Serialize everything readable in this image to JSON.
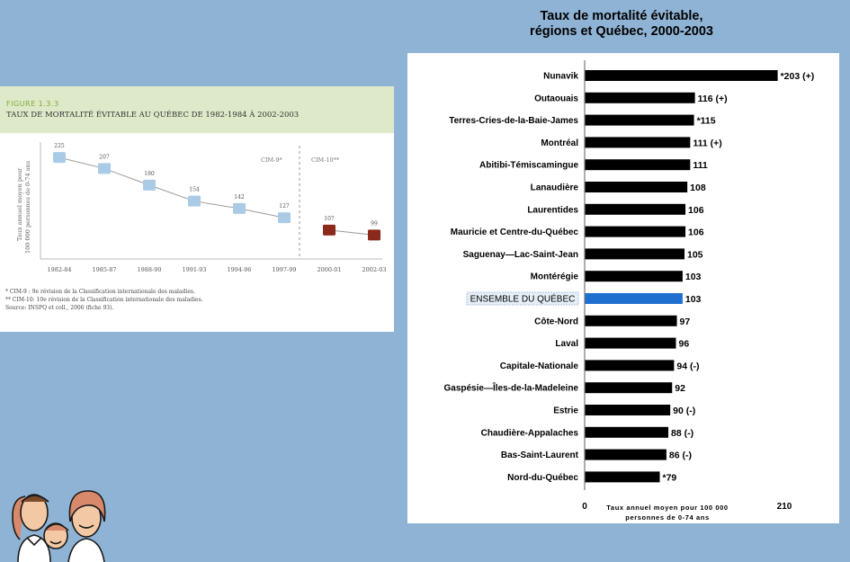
{
  "left_figure": {
    "label": "FIGURE 1.3.3",
    "title": "TAUX DE MORTALITÉ ÉVITABLE AU QUÉBEC DE 1982-1984 À 2002-2003",
    "ylabel_line1": "Taux annuel moyen pour",
    "ylabel_line2": "100 000 personnes de 0-74 ans",
    "cim9_label": "CIM-9*",
    "cim10_label": "CIM-10**",
    "notes": [
      "* CIM-9 : 9e révision de la Classification internationale des maladies.",
      "** CIM-10: 10e révision de la Classification internationale des maladies.",
      "Source: INSPQ et coll., 2006 (fiche 93)."
    ],
    "colors": {
      "cim9": "#a9cbe6",
      "cim10": "#8b2a1c",
      "line": "#9a9a9a"
    }
  },
  "chart_data": [
    {
      "type": "line",
      "title": "TAUX DE MORTALITÉ ÉVITABLE AU QUÉBEC DE 1982-1984 À 2002-2003",
      "ylabel": "Taux annuel moyen pour 100 000 personnes de 0-74 ans",
      "categories": [
        "1982-84",
        "1985-87",
        "1988-90",
        "1991-93",
        "1994-96",
        "1997-99",
        "2000-01",
        "2002-03"
      ],
      "series": [
        {
          "name": "CIM-9*",
          "values": [
            225,
            207,
            180,
            154,
            142,
            127,
            null,
            null
          ],
          "labels": [
            "225",
            "207",
            "180",
            "154",
            "142",
            "127",
            "",
            ""
          ]
        },
        {
          "name": "CIM-10**",
          "values": [
            null,
            null,
            null,
            null,
            null,
            null,
            107,
            99
          ],
          "labels": [
            "",
            "",
            "",
            "",
            "",
            "",
            "107",
            "99"
          ]
        }
      ],
      "ylim": [
        60,
        250
      ]
    },
    {
      "type": "bar",
      "orientation": "horizontal",
      "title_line1": "Taux de mortalité évitable,",
      "title_line2": "régions et Québec, 2000-2003",
      "xlabel_line1": "Taux annuel moyen pour 100 000",
      "xlabel_line2": "personnes de 0-74 ans",
      "x_ticks": [
        "0",
        "210"
      ],
      "xlim": [
        0,
        210
      ],
      "highlight": "ENSEMBLE DU QUÉBEC",
      "colors": {
        "bar": "#000000",
        "highlight": "#1f6fd1"
      },
      "categories": [
        "Nunavik",
        "Outaouais",
        "Terres-Cries-de-la-Baie-James",
        "Montréal",
        "Abitibi-Témiscamingue",
        "Lanaudière",
        "Laurentides",
        "Mauricie et Centre-du-Québec",
        "Saguenay—Lac-Saint-Jean",
        "Montérégie",
        "ENSEMBLE DU QUÉBEC",
        "Côte-Nord",
        "Laval",
        "Capitale-Nationale",
        "Gaspésie—Îles-de-la-Madeleine",
        "Estrie",
        "Chaudière-Appalaches",
        "Bas-Saint-Laurent",
        "Nord-du-Québec"
      ],
      "values": [
        203,
        116,
        115,
        111,
        111,
        108,
        106,
        106,
        105,
        103,
        103,
        97,
        96,
        94,
        92,
        90,
        88,
        86,
        79
      ],
      "labels": [
        "*203 (+)",
        "116 (+)",
        "*115",
        "111 (+)",
        "111",
        "108",
        "106",
        "106",
        "105",
        "103",
        "103",
        "97",
        "96",
        "94 (-)",
        "92",
        "90 (-)",
        "88 (-)",
        "86 (-)",
        "*79"
      ]
    }
  ]
}
